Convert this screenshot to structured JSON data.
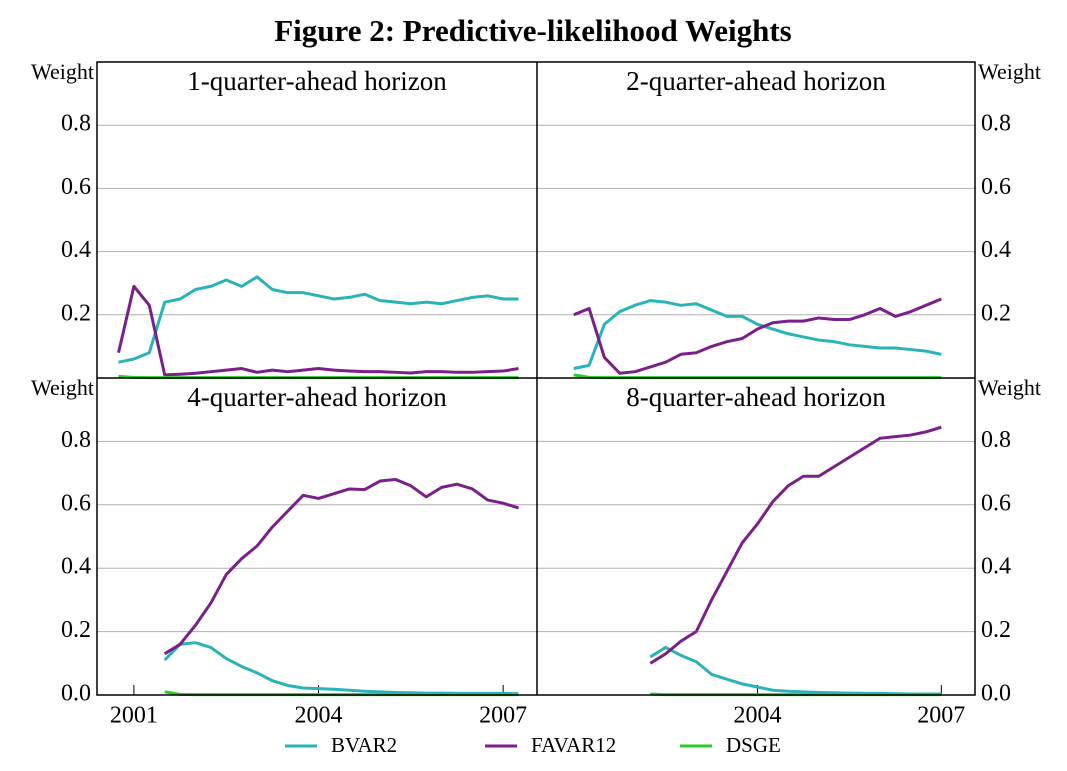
{
  "title": "Figure 2: Predictive-likelihood Weights",
  "chart_data": [
    {
      "type": "line",
      "title": "1-quarter-ahead horizon",
      "ylabel": "Weight",
      "yaxis_side": "left",
      "grid": true,
      "xlim": [
        2000.4,
        2007.55
      ],
      "ylim": [
        0,
        1
      ],
      "yticks": [
        0.2,
        0.4,
        0.6,
        0.8
      ],
      "x": [
        2000.75,
        2001,
        2001.25,
        2001.5,
        2001.75,
        2002,
        2002.25,
        2002.5,
        2002.75,
        2003,
        2003.25,
        2003.5,
        2003.75,
        2004,
        2004.25,
        2004.5,
        2004.75,
        2005,
        2005.25,
        2005.5,
        2005.75,
        2006,
        2006.25,
        2006.5,
        2006.75,
        2007,
        2007.25
      ],
      "series": [
        {
          "name": "BVAR2",
          "color": "#2ab3b8",
          "values": [
            0.05,
            0.06,
            0.08,
            0.24,
            0.25,
            0.28,
            0.29,
            0.31,
            0.29,
            0.32,
            0.28,
            0.27,
            0.27,
            0.26,
            0.25,
            0.255,
            0.265,
            0.245,
            0.24,
            0.235,
            0.24,
            0.235,
            0.245,
            0.255,
            0.26,
            0.25,
            0.25
          ]
        },
        {
          "name": "FAVAR12",
          "color": "#7b1f8b",
          "values": [
            0.08,
            0.29,
            0.23,
            0.01,
            0.012,
            0.015,
            0.02,
            0.025,
            0.03,
            0.018,
            0.025,
            0.02,
            0.025,
            0.03,
            0.025,
            0.022,
            0.02,
            0.02,
            0.018,
            0.016,
            0.02,
            0.02,
            0.018,
            0.018,
            0.02,
            0.022,
            0.03
          ]
        },
        {
          "name": "DSGE",
          "color": "#2ccc2c",
          "values": [
            0.005,
            0.002,
            0.001,
            0.001,
            0.001,
            0.001,
            0.001,
            0.001,
            0.001,
            0.001,
            0.001,
            0.001,
            0.001,
            0.001,
            0.001,
            0.001,
            0.001,
            0.001,
            0.001,
            0.001,
            0.001,
            0.001,
            0.001,
            0.001,
            0.001,
            0.001,
            0.001
          ]
        }
      ]
    },
    {
      "type": "line",
      "title": "2-quarter-ahead horizon",
      "ylabel": "Weight",
      "yaxis_side": "right",
      "grid": true,
      "xlim": [
        2000.4,
        2007.55
      ],
      "ylim": [
        0,
        1
      ],
      "yticks": [
        0.2,
        0.4,
        0.6,
        0.8
      ],
      "x": [
        2001,
        2001.25,
        2001.5,
        2001.75,
        2002,
        2002.25,
        2002.5,
        2002.75,
        2003,
        2003.25,
        2003.5,
        2003.75,
        2004,
        2004.25,
        2004.5,
        2004.75,
        2005,
        2005.25,
        2005.5,
        2005.75,
        2006,
        2006.25,
        2006.5,
        2006.75,
        2007
      ],
      "series": [
        {
          "name": "BVAR2",
          "color": "#2ab3b8",
          "values": [
            0.03,
            0.04,
            0.17,
            0.21,
            0.23,
            0.245,
            0.24,
            0.23,
            0.235,
            0.215,
            0.195,
            0.195,
            0.17,
            0.155,
            0.14,
            0.13,
            0.12,
            0.115,
            0.105,
            0.1,
            0.095,
            0.095,
            0.09,
            0.085,
            0.075
          ]
        },
        {
          "name": "FAVAR12",
          "color": "#7b1f8b",
          "values": [
            0.2,
            0.22,
            0.065,
            0.015,
            0.02,
            0.035,
            0.05,
            0.075,
            0.08,
            0.1,
            0.115,
            0.125,
            0.155,
            0.175,
            0.18,
            0.18,
            0.19,
            0.185,
            0.185,
            0.2,
            0.22,
            0.195,
            0.21,
            0.23,
            0.25
          ]
        },
        {
          "name": "DSGE",
          "color": "#2ccc2c",
          "values": [
            0.01,
            0.002,
            0.001,
            0.001,
            0.001,
            0.001,
            0.001,
            0.001,
            0.001,
            0.001,
            0.001,
            0.001,
            0.001,
            0.001,
            0.001,
            0.001,
            0.001,
            0.001,
            0.001,
            0.001,
            0.001,
            0.001,
            0.001,
            0.001,
            0.001
          ]
        }
      ]
    },
    {
      "type": "line",
      "title": "4-quarter-ahead horizon",
      "ylabel": "Weight",
      "yaxis_side": "left",
      "grid": true,
      "xlim": [
        2000.4,
        2007.55
      ],
      "ylim": [
        0,
        1
      ],
      "yticks": [
        {
          "value": 0,
          "label": "0.0"
        },
        0.2,
        0.4,
        0.6,
        0.8
      ],
      "xticks": [
        2001,
        2004,
        2007
      ],
      "x": [
        2001.5,
        2001.75,
        2002,
        2002.25,
        2002.5,
        2002.75,
        2003,
        2003.25,
        2003.5,
        2003.75,
        2004,
        2004.25,
        2004.5,
        2004.75,
        2005,
        2005.25,
        2005.5,
        2005.75,
        2006,
        2006.25,
        2006.5,
        2006.75,
        2007,
        2007.25
      ],
      "series": [
        {
          "name": "BVAR2",
          "color": "#2ab3b8",
          "values": [
            0.11,
            0.16,
            0.165,
            0.15,
            0.115,
            0.09,
            0.07,
            0.045,
            0.03,
            0.022,
            0.02,
            0.018,
            0.015,
            0.012,
            0.01,
            0.008,
            0.007,
            0.006,
            0.006,
            0.005,
            0.005,
            0.005,
            0.005,
            0.004
          ]
        },
        {
          "name": "FAVAR12",
          "color": "#7b1f8b",
          "values": [
            0.13,
            0.16,
            0.22,
            0.29,
            0.38,
            0.43,
            0.47,
            0.53,
            0.58,
            0.63,
            0.62,
            0.635,
            0.65,
            0.648,
            0.675,
            0.68,
            0.66,
            0.625,
            0.655,
            0.665,
            0.65,
            0.615,
            0.605,
            0.59
          ]
        },
        {
          "name": "DSGE",
          "color": "#2ccc2c",
          "values": [
            0.01,
            0.002,
            0.001,
            0.001,
            0.001,
            0.001,
            0.001,
            0.001,
            0.001,
            0.001,
            0.001,
            0.001,
            0.001,
            0.001,
            0.001,
            0.001,
            0.001,
            0.001,
            0.001,
            0.001,
            0.001,
            0.001,
            0.001,
            0.001
          ]
        }
      ]
    },
    {
      "type": "line",
      "title": "8-quarter-ahead horizon",
      "ylabel": "Weight",
      "yaxis_side": "right",
      "grid": true,
      "xlim": [
        2000.4,
        2007.55
      ],
      "ylim": [
        0,
        1
      ],
      "yticks": [
        {
          "value": 0,
          "label": "0.0"
        },
        0.2,
        0.4,
        0.6,
        0.8
      ],
      "xticks": [
        2004,
        2007
      ],
      "x": [
        2002.25,
        2002.5,
        2002.75,
        2003,
        2003.25,
        2003.5,
        2003.75,
        2004,
        2004.25,
        2004.5,
        2004.75,
        2005,
        2005.25,
        2005.5,
        2005.75,
        2006,
        2006.25,
        2006.5,
        2006.75,
        2007
      ],
      "series": [
        {
          "name": "BVAR2",
          "color": "#2ab3b8",
          "values": [
            0.12,
            0.15,
            0.125,
            0.105,
            0.065,
            0.05,
            0.035,
            0.025,
            0.015,
            0.012,
            0.01,
            0.008,
            0.007,
            0.006,
            0.005,
            0.005,
            0.004,
            0.003,
            0.003,
            0.003
          ]
        },
        {
          "name": "FAVAR12",
          "color": "#7b1f8b",
          "values": [
            0.1,
            0.13,
            0.17,
            0.2,
            0.3,
            0.39,
            0.48,
            0.54,
            0.61,
            0.66,
            0.69,
            0.69,
            0.72,
            0.75,
            0.78,
            0.81,
            0.815,
            0.82,
            0.83,
            0.845
          ]
        },
        {
          "name": "DSGE",
          "color": "#2ccc2c",
          "values": [
            0.003,
            0.001,
            0.001,
            0.001,
            0.001,
            0.001,
            0.001,
            0.001,
            0.001,
            0.001,
            0.001,
            0.001,
            0.001,
            0.001,
            0.001,
            0.001,
            0.001,
            0.001,
            0.001,
            0.001
          ]
        }
      ]
    }
  ]
}
